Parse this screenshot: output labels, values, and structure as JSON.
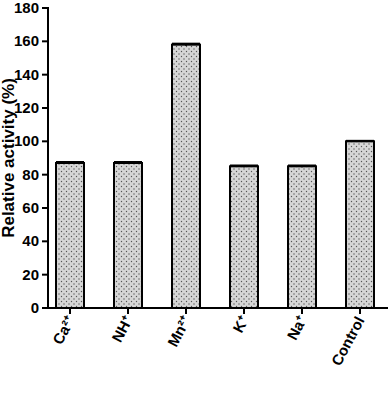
{
  "chart_data": {
    "type": "bar",
    "y_label": "Relative activity (%)",
    "categories": [
      "Ca²⁺",
      "NH⁺",
      "Mn²⁺",
      "K⁺",
      "Na⁺",
      "Control"
    ],
    "values": [
      87,
      87,
      158,
      85,
      85,
      100
    ],
    "errors": [
      0.6,
      0.6,
      0.6,
      0.5,
      0.5,
      0.3
    ],
    "color": "#d6d6d6",
    "ylim": [
      0,
      180
    ],
    "yticks": [
      0,
      20,
      40,
      60,
      80,
      100,
      120,
      140,
      160,
      180
    ],
    "grid": false
  }
}
